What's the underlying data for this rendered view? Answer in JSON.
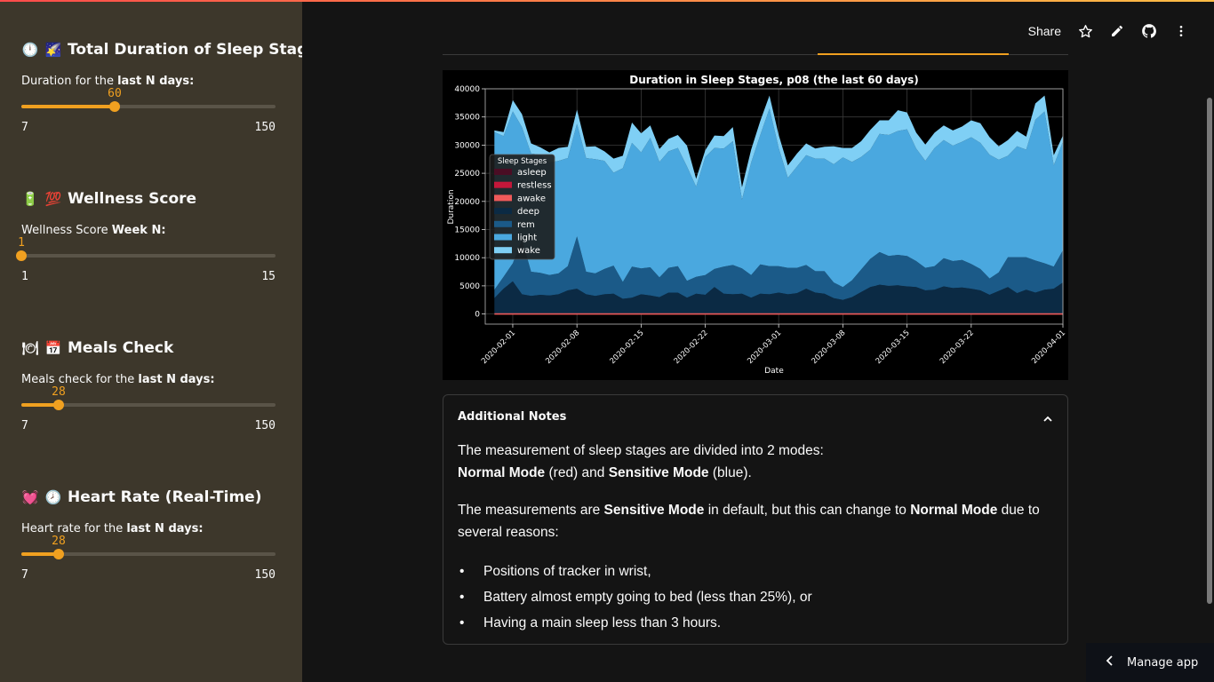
{
  "sidebar": {
    "sections": [
      {
        "emoji": [
          "🕛",
          "🌠"
        ],
        "title": "Total Duration of Sleep Stages",
        "label_pre": "Duration for the ",
        "label_bold": "last N days:",
        "value": "60",
        "min": "7",
        "max": "150",
        "fraction": 0.3681
      },
      {
        "emoji": [
          "🔋",
          "💯"
        ],
        "title": "Wellness Score",
        "label_pre": "Wellness Score ",
        "label_bold": "Week N:",
        "value": "1",
        "min": "1",
        "max": "15",
        "fraction": 0.0
      },
      {
        "emoji": [
          "🍽",
          "📅"
        ],
        "title": "Meals Check",
        "label_pre": "Meals check for the ",
        "label_bold": "last N days:",
        "value": "28",
        "min": "7",
        "max": "150",
        "fraction": 0.1469
      },
      {
        "emoji": [
          "💓",
          "🕗"
        ],
        "title": "Heart Rate (Real-Time)",
        "label_pre": "Heart rate for the ",
        "label_bold": "last N days:",
        "value": "28",
        "min": "7",
        "max": "150",
        "fraction": 0.1469
      }
    ]
  },
  "toolbar": {
    "share_label": "Share"
  },
  "notes": {
    "title": "Additional Notes",
    "p1_a": "The measurement of sleep stages are divided into 2 modes:",
    "p1_b1": "Normal Mode",
    "p1_b2": " (red) and ",
    "p1_b3": "Sensitive Mode",
    "p1_b4": " (blue).",
    "p2_a": "The measurements are ",
    "p2_b": "Sensitive Mode",
    "p2_c": " in default, but this can change to ",
    "p2_d": "Normal Mode",
    "p2_e": " due to several reasons:",
    "bullets": [
      "Positions of tracker in wrist,",
      "Battery almost empty going to bed (less than 25%), or",
      "Having a main sleep less than 3 hours."
    ]
  },
  "manage_app": "Manage app",
  "chart_data": {
    "type": "area",
    "title": "Duration in Sleep Stages, p08 (the last 60 days)",
    "xlabel": "Date",
    "ylabel": "Duration",
    "ylim": [
      -1800,
      40000
    ],
    "yticks": [
      0,
      5000,
      10000,
      15000,
      20000,
      25000,
      30000,
      35000,
      40000
    ],
    "xticks": [
      "2020-02-01",
      "2020-02-08",
      "2020-02-15",
      "2020-02-22",
      "2020-03-01",
      "2020-03-08",
      "2020-03-15",
      "2020-03-22",
      "2020-04-01"
    ],
    "grid": true,
    "legend": {
      "title": "Sleep Stages",
      "position": "left"
    },
    "stages": [
      "asleep",
      "restless",
      "awake",
      "deep",
      "rem",
      "light",
      "wake"
    ],
    "colors": {
      "asleep": "#4a0d24",
      "restless": "#c4173a",
      "awake": "#f05a5a",
      "deep": "#0b2a44",
      "rem": "#1b5a88",
      "light": "#4aa8df",
      "wake": "#7fcff5"
    },
    "x_start": "2020-01-29",
    "x_end": "2020-04-01",
    "stacked_series": [
      {
        "name": "deep",
        "values": [
          2800,
          4500,
          5800,
          3500,
          3200,
          3400,
          3300,
          3500,
          4200,
          4500,
          3500,
          3200,
          3500,
          3600,
          2700,
          2900,
          3500,
          3300,
          3000,
          3800,
          3800,
          2900,
          3600,
          3400,
          4800,
          3600,
          3500,
          3600,
          2900,
          3600,
          3500,
          3800,
          3500,
          3700,
          4500,
          3800,
          3600,
          2800,
          2500,
          3000,
          3900,
          4800,
          5200,
          5000,
          5100,
          4900,
          4800,
          4200,
          4300,
          4900,
          4600,
          4700,
          4500,
          4200,
          3400,
          4100,
          4800,
          3700,
          4300,
          3800,
          4300,
          4500,
          5600
        ]
      },
      {
        "name": "rem",
        "values": [
          1500,
          2100,
          3200,
          9700,
          4300,
          3900,
          3600,
          3700,
          4300,
          9300,
          4000,
          4000,
          4500,
          5000,
          3000,
          5500,
          4600,
          5000,
          3500,
          4400,
          4700,
          3000,
          3000,
          3500,
          3200,
          4800,
          5200,
          4500,
          4000,
          5200,
          5000,
          4700,
          4700,
          4500,
          4200,
          3800,
          4000,
          2800,
          2300,
          3000,
          4000,
          5000,
          5800,
          5300,
          5400,
          5400,
          4600,
          4000,
          4200,
          5000,
          4800,
          4900,
          4400,
          3800,
          2900,
          3300,
          5300,
          6400,
          5800,
          5700,
          4700,
          3900,
          5700
        ]
      },
      {
        "name": "light",
        "values": [
          28000,
          25000,
          27000,
          20000,
          21000,
          21000,
          20000,
          20000,
          19200,
          20000,
          20200,
          20300,
          19200,
          16500,
          20200,
          22000,
          20600,
          23000,
          20500,
          20700,
          21000,
          20300,
          16000,
          21000,
          21500,
          21000,
          22000,
          12200,
          20000,
          23000,
          28000,
          21000,
          16000,
          18000,
          19500,
          20000,
          20000,
          21000,
          23000,
          21000,
          20000,
          19400,
          21000,
          21500,
          22000,
          22500,
          20000,
          19000,
          21000,
          21000,
          20500,
          21000,
          22500,
          22400,
          22000,
          20000,
          18000,
          19700,
          19100,
          25000,
          27000,
          18000,
          19300
        ]
      },
      {
        "name": "wake",
        "values": [
          300,
          700,
          2000,
          2300,
          1800,
          1300,
          1800,
          2300,
          2000,
          2500,
          2000,
          2300,
          1700,
          2500,
          2200,
          3600,
          3400,
          2200,
          2300,
          2200,
          2300,
          3700,
          1400,
          1200,
          2200,
          2200,
          2500,
          2200,
          2300,
          2500,
          2300,
          2300,
          2200,
          2300,
          2100,
          1800,
          2100,
          3200,
          1700,
          2500,
          2800,
          3500,
          2400,
          2600,
          3700,
          3000,
          2800,
          2900,
          2700,
          2600,
          2700,
          2700,
          3000,
          3500,
          3100,
          2400,
          2800,
          2700,
          2300,
          2900,
          2800,
          1800,
          1100
        ]
      }
    ],
    "normal_mode_series": [
      {
        "name": "awake",
        "values": [
          0,
          0,
          0,
          0,
          0,
          0,
          0,
          0,
          0,
          0,
          0,
          0,
          0,
          0,
          0,
          0,
          0,
          0,
          0,
          0,
          0,
          0,
          0,
          0,
          0,
          0,
          0,
          0,
          0,
          0,
          0,
          0,
          0,
          0,
          0,
          0,
          0,
          0,
          0,
          0,
          0,
          0,
          0,
          0,
          0,
          0,
          0,
          0,
          0,
          0,
          0,
          0,
          0,
          0,
          0,
          0,
          0,
          0,
          0,
          0,
          0,
          0,
          0
        ]
      }
    ],
    "dates": [
      "2020-01-30",
      "2020-01-31",
      "2020-02-01",
      "2020-02-02",
      "2020-02-03",
      "2020-02-04",
      "2020-02-05",
      "2020-02-06",
      "2020-02-07",
      "2020-02-08",
      "2020-02-09",
      "2020-02-10",
      "2020-02-11",
      "2020-02-12",
      "2020-02-13",
      "2020-02-14",
      "2020-02-15",
      "2020-02-16",
      "2020-02-17",
      "2020-02-18",
      "2020-02-19",
      "2020-02-20",
      "2020-02-21",
      "2020-02-22",
      "2020-02-23",
      "2020-02-24",
      "2020-02-25",
      "2020-02-26",
      "2020-02-27",
      "2020-02-28",
      "2020-02-29",
      "2020-03-01",
      "2020-03-02",
      "2020-03-03",
      "2020-03-04",
      "2020-03-05",
      "2020-03-06",
      "2020-03-07",
      "2020-03-08",
      "2020-03-09",
      "2020-03-10",
      "2020-03-11",
      "2020-03-12",
      "2020-03-13",
      "2020-03-14",
      "2020-03-15",
      "2020-03-16",
      "2020-03-17",
      "2020-03-18",
      "2020-03-19",
      "2020-03-20",
      "2020-03-21",
      "2020-03-22",
      "2020-03-23",
      "2020-03-24",
      "2020-03-25",
      "2020-03-26",
      "2020-03-27",
      "2020-03-28",
      "2020-03-29",
      "2020-03-30",
      "2020-03-31",
      "2020-04-01"
    ]
  }
}
